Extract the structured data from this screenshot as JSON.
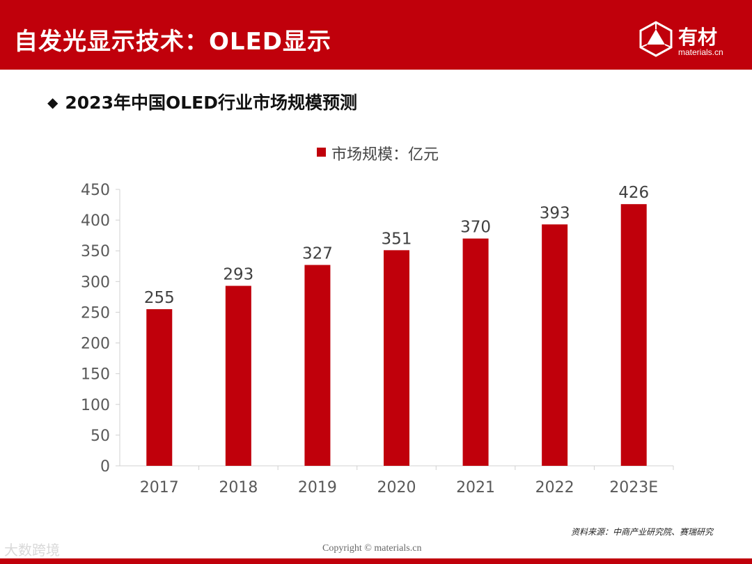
{
  "header": {
    "title": "自发光显示技术：OLED显示",
    "logo_name": "有材",
    "logo_domain": "materials.cn",
    "color": "#c0000b"
  },
  "subtitle": {
    "bullet": "◆",
    "text": "2023年中国OLED行业市场规模预测"
  },
  "chart_data": {
    "type": "bar",
    "title": "",
    "legend": "市场规模：亿元",
    "legend_position": "top-center",
    "categories": [
      "2017",
      "2018",
      "2019",
      "2020",
      "2021",
      "2022",
      "2023E"
    ],
    "series": [
      {
        "name": "市场规模：亿元",
        "values": [
          255,
          293,
          327,
          351,
          370,
          393,
          426
        ],
        "color": "#c0000b"
      }
    ],
    "yticks": [
      0,
      50,
      100,
      150,
      200,
      250,
      300,
      350,
      400,
      450
    ],
    "ylim": [
      0,
      450
    ],
    "xlabel": "",
    "ylabel": "",
    "grid": false,
    "data_labels": true
  },
  "footer": {
    "source": "资料来源：中商产业研究院、赛瑞研究",
    "copyright": "Copyright © materials.cn",
    "corner_mark": "大数跨境"
  }
}
